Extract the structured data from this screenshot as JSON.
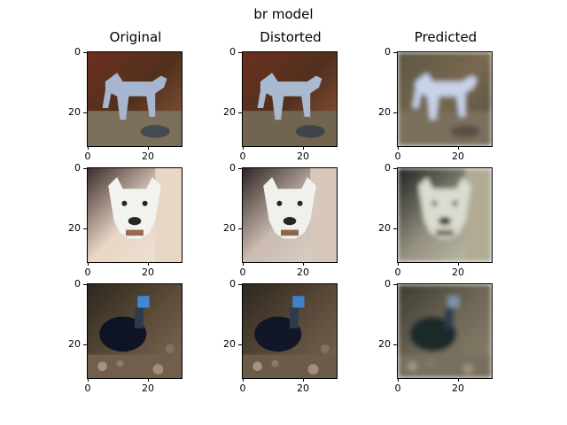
{
  "figure": {
    "title": "br model"
  },
  "columns": [
    {
      "title": "Original"
    },
    {
      "title": "Distorted"
    },
    {
      "title": "Predicted"
    }
  ],
  "axes": {
    "x_ticks": [
      "0",
      "20"
    ],
    "y_ticks": [
      "0",
      "20"
    ]
  },
  "rows": [
    {
      "subject": "horse"
    },
    {
      "subject": "dog"
    },
    {
      "subject": "bird"
    }
  ]
}
